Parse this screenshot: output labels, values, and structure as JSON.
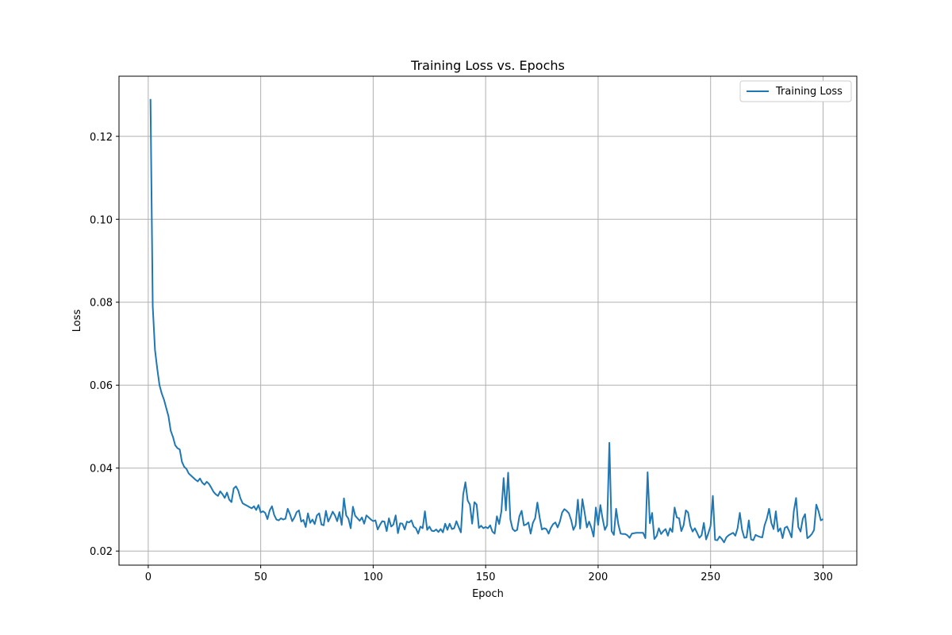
{
  "chart_data": {
    "type": "line",
    "title": "Training Loss vs. Epochs",
    "xlabel": "Epoch",
    "ylabel": "Loss",
    "xlim": [
      -13,
      315
    ],
    "ylim": [
      0.0166,
      0.1345
    ],
    "xticks": [
      0,
      50,
      100,
      150,
      200,
      250,
      300
    ],
    "yticks": [
      0.02,
      0.04,
      0.06,
      0.08,
      0.1,
      0.12
    ],
    "ytick_labels": [
      "0.02",
      "0.04",
      "0.06",
      "0.08",
      "0.10",
      "0.12"
    ],
    "grid": true,
    "legend_position": "top-right",
    "series": [
      {
        "name": "Training Loss",
        "color": "#1f77b4",
        "x_start": 1,
        "x_step": 1,
        "values": [
          0.129,
          0.079,
          0.0685,
          0.064,
          0.06,
          0.058,
          0.0565,
          0.0545,
          0.0525,
          0.049,
          0.0475,
          0.0455,
          0.0448,
          0.0445,
          0.0415,
          0.0403,
          0.0398,
          0.0387,
          0.0382,
          0.0377,
          0.0372,
          0.0368,
          0.0375,
          0.0365,
          0.036,
          0.0367,
          0.0362,
          0.0353,
          0.0343,
          0.0337,
          0.0333,
          0.0344,
          0.0337,
          0.0328,
          0.0341,
          0.0324,
          0.0318,
          0.0351,
          0.0356,
          0.0346,
          0.0327,
          0.0315,
          0.0312,
          0.0309,
          0.0306,
          0.0303,
          0.0308,
          0.0299,
          0.0311,
          0.0293,
          0.0296,
          0.0292,
          0.0277,
          0.0298,
          0.0308,
          0.0287,
          0.0276,
          0.0274,
          0.0279,
          0.0276,
          0.0278,
          0.0302,
          0.0289,
          0.0272,
          0.0281,
          0.0294,
          0.0298,
          0.0271,
          0.0275,
          0.0258,
          0.0291,
          0.0268,
          0.0276,
          0.0265,
          0.0286,
          0.0291,
          0.0264,
          0.0262,
          0.0297,
          0.0271,
          0.0282,
          0.0295,
          0.0286,
          0.0272,
          0.0294,
          0.0263,
          0.0327,
          0.0286,
          0.0278,
          0.0255,
          0.0307,
          0.0285,
          0.0279,
          0.0273,
          0.0281,
          0.0266,
          0.0286,
          0.0281,
          0.0276,
          0.0272,
          0.0274,
          0.0252,
          0.0263,
          0.0272,
          0.0271,
          0.0248,
          0.0279,
          0.0259,
          0.0264,
          0.0286,
          0.0243,
          0.0267,
          0.0266,
          0.0252,
          0.0271,
          0.0269,
          0.0274,
          0.0259,
          0.0255,
          0.0242,
          0.0259,
          0.0255,
          0.0296,
          0.0251,
          0.0259,
          0.0249,
          0.0248,
          0.0252,
          0.0246,
          0.0253,
          0.0245,
          0.0266,
          0.0251,
          0.0266,
          0.0253,
          0.0255,
          0.0272,
          0.0258,
          0.0245,
          0.0336,
          0.0366,
          0.0322,
          0.0312,
          0.0266,
          0.0318,
          0.0312,
          0.0256,
          0.0261,
          0.0255,
          0.0258,
          0.0255,
          0.0262,
          0.0247,
          0.0242,
          0.0284,
          0.0265,
          0.0296,
          0.0376,
          0.0298,
          0.0389,
          0.0276,
          0.0253,
          0.0248,
          0.0251,
          0.0284,
          0.0297,
          0.0262,
          0.0264,
          0.0269,
          0.0242,
          0.0268,
          0.0279,
          0.0317,
          0.0281,
          0.0252,
          0.0255,
          0.0253,
          0.0242,
          0.0256,
          0.0265,
          0.0269,
          0.0257,
          0.0271,
          0.0293,
          0.0301,
          0.0297,
          0.0291,
          0.0275,
          0.0251,
          0.0262,
          0.0324,
          0.0254,
          0.0325,
          0.0293,
          0.0257,
          0.0271,
          0.0256,
          0.0235,
          0.0305,
          0.0263,
          0.0311,
          0.0278,
          0.0251,
          0.0262,
          0.0461,
          0.0248,
          0.0239,
          0.0302,
          0.0264,
          0.0242,
          0.0241,
          0.0241,
          0.0238,
          0.0232,
          0.0242,
          0.0243,
          0.0244,
          0.0244,
          0.0244,
          0.0244,
          0.0231,
          0.039,
          0.0267,
          0.0292,
          0.0229,
          0.0236,
          0.0255,
          0.0241,
          0.0248,
          0.0253,
          0.0237,
          0.0255,
          0.0246,
          0.0305,
          0.0281,
          0.0279,
          0.0248,
          0.0262,
          0.0298,
          0.0293,
          0.0261,
          0.0247,
          0.0255,
          0.0244,
          0.0232,
          0.0238,
          0.0268,
          0.0228,
          0.0243,
          0.0261,
          0.0333,
          0.0227,
          0.0226,
          0.0235,
          0.0229,
          0.0221,
          0.0233,
          0.0238,
          0.0241,
          0.0244,
          0.0237,
          0.0255,
          0.0292,
          0.0251,
          0.0232,
          0.0233,
          0.0274,
          0.0228,
          0.0226,
          0.0239,
          0.0236,
          0.0234,
          0.0233,
          0.0262,
          0.0278,
          0.0302,
          0.0268,
          0.0253,
          0.0296,
          0.0247,
          0.0255,
          0.0231,
          0.0256,
          0.0259,
          0.0247,
          0.0233,
          0.0296,
          0.0328,
          0.0258,
          0.0247,
          0.0278,
          0.0289,
          0.0231,
          0.0235,
          0.0241,
          0.0251,
          0.0312,
          0.0296,
          0.0274,
          0.0277
        ]
      }
    ]
  }
}
